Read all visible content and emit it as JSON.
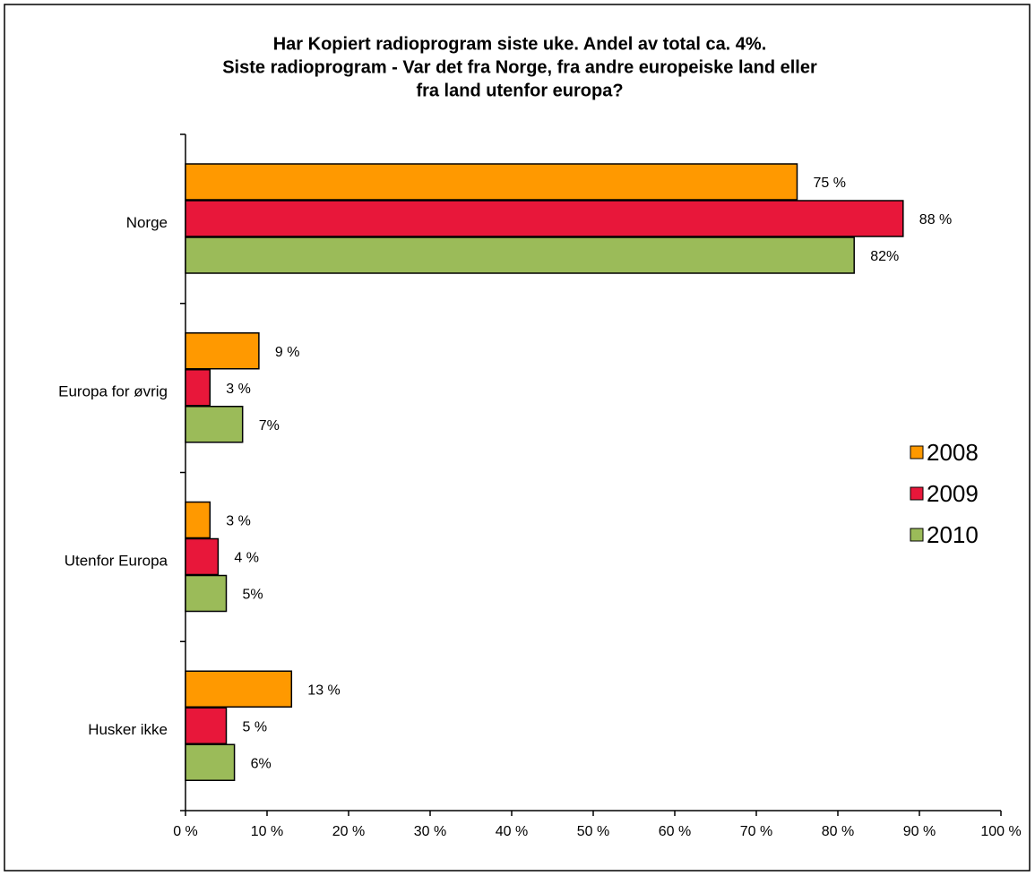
{
  "chart_data": {
    "type": "hbar",
    "title": [
      "Har Kopiert radioprogram siste uke. Andel av total ca. 4%.",
      "Siste radioprogram - Var det fra Norge, fra andre europeiske land eller",
      "fra land utenfor europa?"
    ],
    "categories": [
      "Norge",
      "Europa for øvrig",
      "Utenfor Europa",
      "Husker ikke"
    ],
    "series": [
      {
        "name": "2008",
        "color": "#ff9900",
        "values": [
          75,
          9,
          3,
          13
        ],
        "value_labels": [
          "75 %",
          "9 %",
          "3 %",
          "13 %"
        ]
      },
      {
        "name": "2009",
        "color": "#e8173a",
        "values": [
          88,
          3,
          4,
          5
        ],
        "value_labels": [
          "88 %",
          "3 %",
          "4 %",
          "5 %"
        ]
      },
      {
        "name": "2010",
        "color": "#9bbb59",
        "values": [
          82,
          7,
          5,
          6
        ],
        "value_labels": [
          "82%",
          "7%",
          "5%",
          "6%"
        ]
      }
    ],
    "xlim": [
      0,
      100
    ],
    "xticks": [
      {
        "value": 0,
        "label": "0 %"
      },
      {
        "value": 10,
        "label": "10 %"
      },
      {
        "value": 20,
        "label": "20 %"
      },
      {
        "value": 30,
        "label": "30 %"
      },
      {
        "value": 40,
        "label": "40 %"
      },
      {
        "value": 50,
        "label": "50 %"
      },
      {
        "value": 60,
        "label": "60 %"
      },
      {
        "value": 70,
        "label": "70 %"
      },
      {
        "value": 80,
        "label": "80 %"
      },
      {
        "value": 90,
        "label": "90 %"
      },
      {
        "value": 100,
        "label": "100 %"
      }
    ],
    "legend": "right"
  }
}
